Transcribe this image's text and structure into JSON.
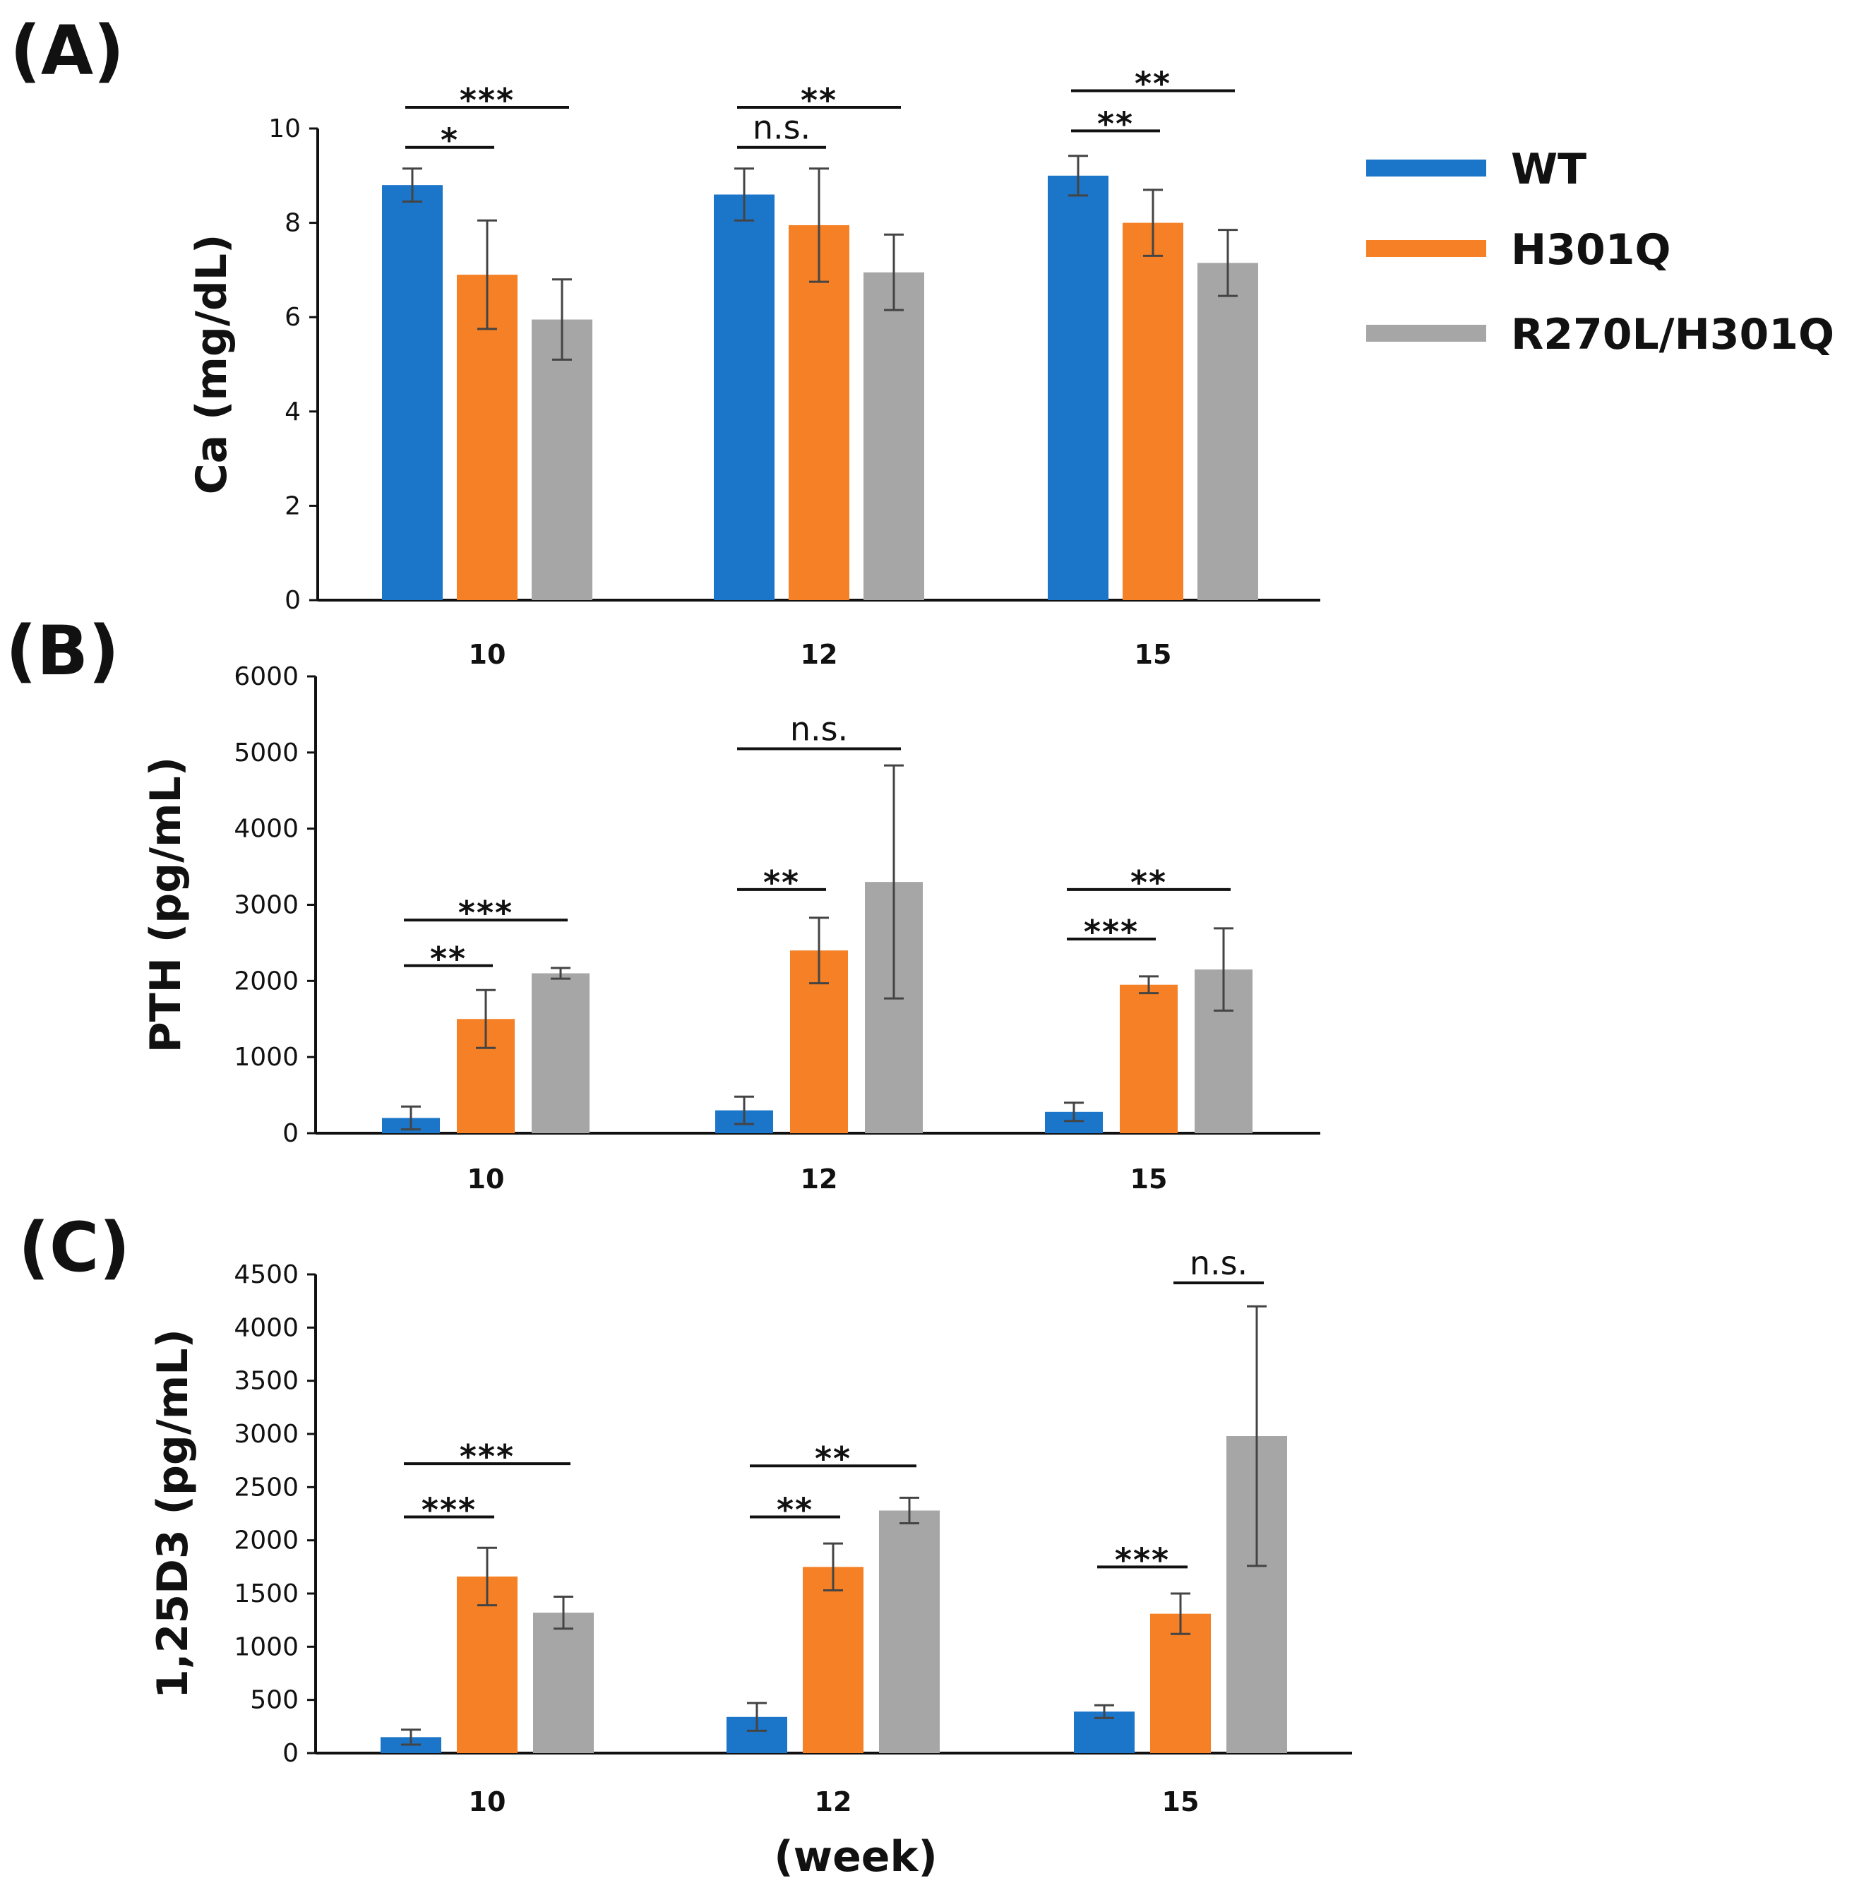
{
  "colors": {
    "WT": "#1b75c9",
    "H301Q": "#f58025",
    "R270L/H301Q": "#a6a6a6"
  },
  "legend": [
    {
      "name": "WT",
      "color": "#1b75c9"
    },
    {
      "name": "H301Q",
      "color": "#f58025"
    },
    {
      "name": "R270L/H301Q",
      "color": "#a6a6a6"
    }
  ],
  "figure": {
    "xlabel": "(week)"
  },
  "chart_data": [
    {
      "type": "bar",
      "panel_label": "(A)",
      "title": "",
      "ylabel": "Ca (mg/dL)",
      "xlabel": "",
      "ylim": [
        0,
        10
      ],
      "yticks": [
        0,
        2,
        4,
        6,
        8,
        10
      ],
      "categories": [
        "10",
        "12",
        "15"
      ],
      "series": [
        {
          "name": "WT",
          "values": [
            8.8,
            8.6,
            9.0
          ],
          "errors": [
            0.35,
            0.55,
            0.42
          ]
        },
        {
          "name": "H301Q",
          "values": [
            6.9,
            7.95,
            8.0
          ],
          "errors": [
            1.15,
            1.2,
            0.7
          ]
        },
        {
          "name": "R270L/H301Q",
          "values": [
            5.95,
            6.95,
            7.15
          ],
          "errors": [
            0.85,
            0.8,
            0.7
          ]
        }
      ],
      "annotations": [
        {
          "category": 0,
          "from": 0,
          "to": 1,
          "text": "*",
          "y": 9.6
        },
        {
          "category": 0,
          "from": 0,
          "to": 2,
          "text": "***",
          "y": 10.45
        },
        {
          "category": 1,
          "from": 0,
          "to": 1,
          "text": "n.s.",
          "y": 9.6
        },
        {
          "category": 1,
          "from": 0,
          "to": 2,
          "text": "**",
          "y": 10.45
        },
        {
          "category": 2,
          "from": 0,
          "to": 1,
          "text": "**",
          "y": 9.95
        },
        {
          "category": 2,
          "from": 0,
          "to": 2,
          "text": "**",
          "y": 10.8
        }
      ]
    },
    {
      "type": "bar",
      "panel_label": "(B)",
      "title": "",
      "ylabel": "PTH (pg/mL)",
      "xlabel": "",
      "ylim": [
        0,
        6000
      ],
      "yticks": [
        0,
        1000,
        2000,
        3000,
        4000,
        5000,
        6000
      ],
      "categories": [
        "10",
        "12",
        "15"
      ],
      "series": [
        {
          "name": "WT",
          "values": [
            200,
            300,
            280
          ],
          "errors": [
            150,
            180,
            120
          ]
        },
        {
          "name": "H301Q",
          "values": [
            1500,
            2400,
            1950
          ],
          "errors": [
            380,
            430,
            110
          ]
        },
        {
          "name": "R270L/H301Q",
          "values": [
            2100,
            3300,
            2150
          ],
          "errors": [
            70,
            1530,
            540
          ]
        }
      ],
      "annotations": [
        {
          "category": 0,
          "from": 0,
          "to": 1,
          "text": "**",
          "y": 2200
        },
        {
          "category": 0,
          "from": 0,
          "to": 2,
          "text": "***",
          "y": 2800
        },
        {
          "category": 1,
          "from": 0,
          "to": 1,
          "text": "**",
          "y": 3200
        },
        {
          "category": 1,
          "from": 0,
          "to": 2,
          "text": "n.s.",
          "y": 5050
        },
        {
          "category": 2,
          "from": 0,
          "to": 1,
          "text": "***",
          "y": 2550
        },
        {
          "category": 2,
          "from": 0,
          "to": 2,
          "text": "**",
          "y": 3200
        }
      ]
    },
    {
      "type": "bar",
      "panel_label": "(C)",
      "title": "",
      "ylabel": "1,25D3 (pg/mL)",
      "xlabel": "",
      "ylim": [
        0,
        4500
      ],
      "yticks": [
        0,
        500,
        1000,
        1500,
        2000,
        2500,
        3000,
        3500,
        4000,
        4500
      ],
      "categories": [
        "10",
        "12",
        "15"
      ],
      "series": [
        {
          "name": "WT",
          "values": [
            150,
            340,
            390
          ],
          "errors": [
            70,
            130,
            60
          ]
        },
        {
          "name": "H301Q",
          "values": [
            1660,
            1750,
            1310
          ],
          "errors": [
            270,
            220,
            190
          ]
        },
        {
          "name": "R270L/H301Q",
          "values": [
            1320,
            2280,
            2980
          ],
          "errors": [
            150,
            120,
            1220
          ]
        }
      ],
      "annotations": [
        {
          "category": 0,
          "from": 0,
          "to": 1,
          "text": "***",
          "y": 2220
        },
        {
          "category": 0,
          "from": 0,
          "to": 2,
          "text": "***",
          "y": 2720
        },
        {
          "category": 1,
          "from": 0,
          "to": 1,
          "text": "**",
          "y": 2220
        },
        {
          "category": 1,
          "from": 0,
          "to": 2,
          "text": "**",
          "y": 2700
        },
        {
          "category": 2,
          "from": 0,
          "to": 1,
          "text": "***",
          "y": 1750
        },
        {
          "category": 2,
          "from": 1,
          "to": 2,
          "text": "n.s.",
          "y": 4420
        }
      ]
    }
  ]
}
